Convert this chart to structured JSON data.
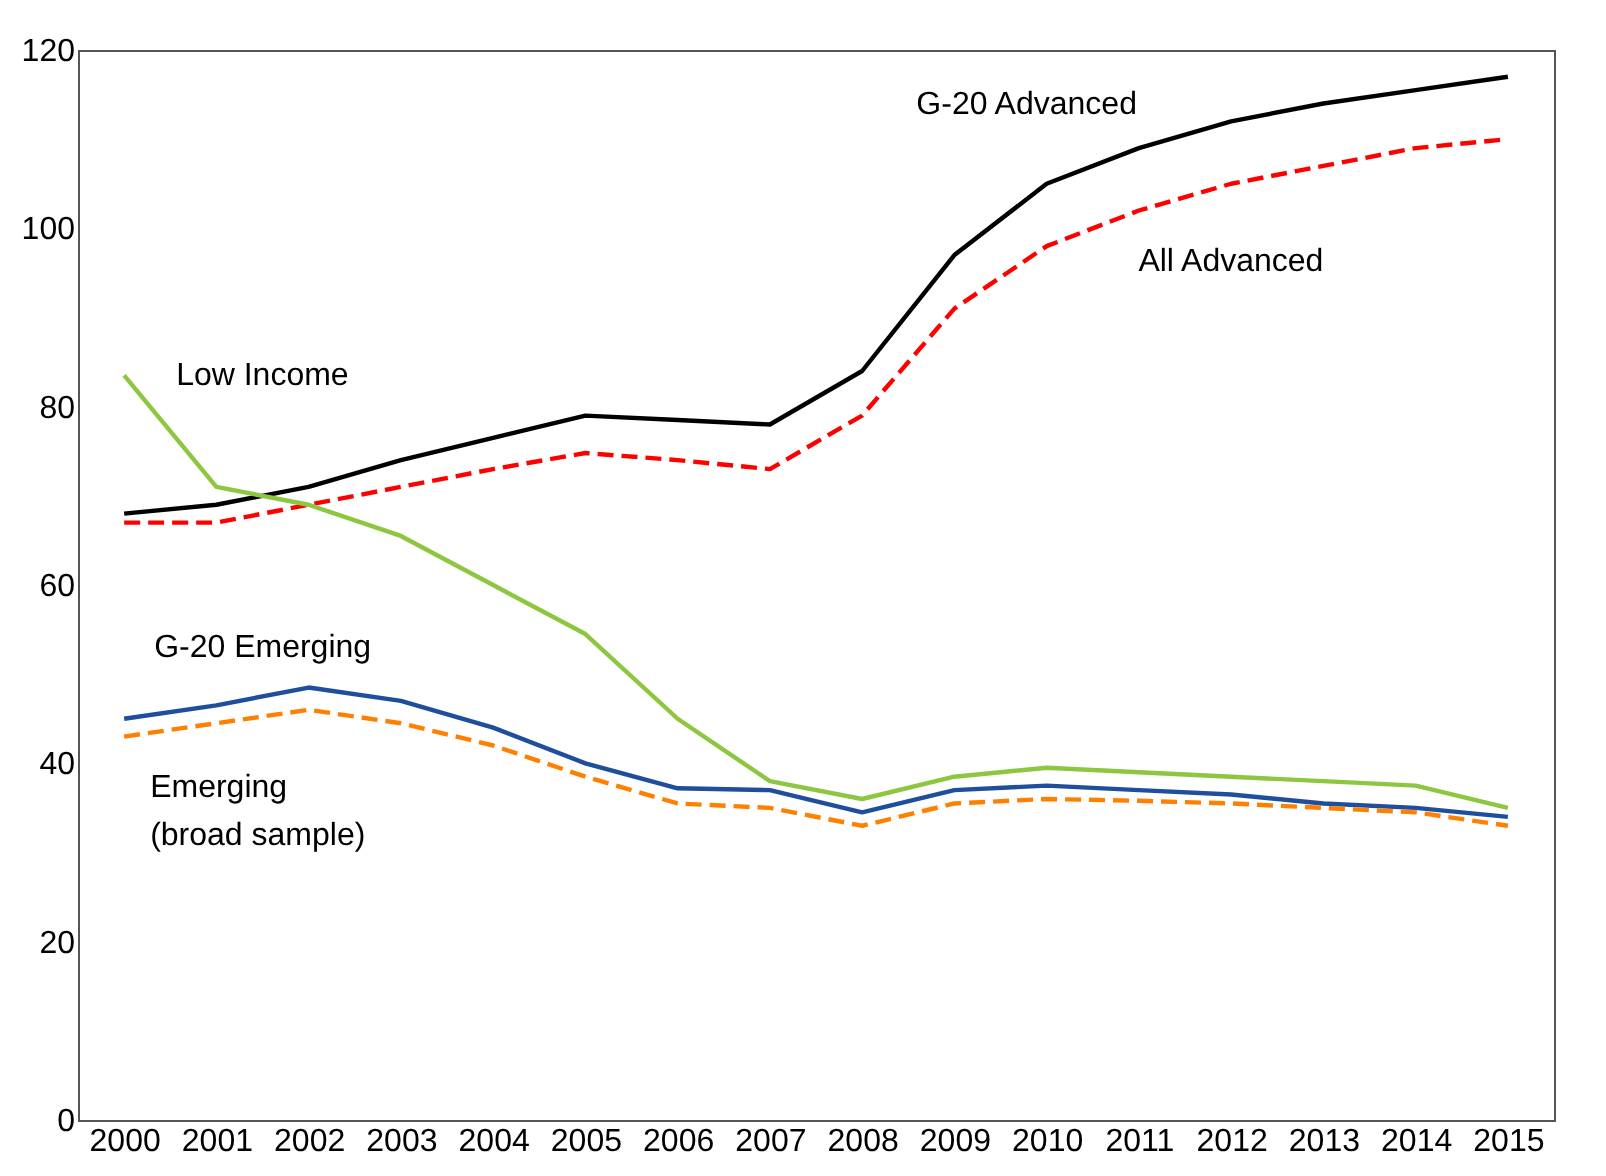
{
  "chart_data": {
    "type": "line",
    "categories": [
      "2000",
      "2001",
      "2002",
      "2003",
      "2004",
      "2005",
      "2006",
      "2007",
      "2008",
      "2009",
      "2010",
      "2011",
      "2012",
      "2013",
      "2014",
      "2015"
    ],
    "series": [
      {
        "name": "G-20 Advanced",
        "color": "#000000",
        "line_style": "solid",
        "values": [
          68,
          69,
          71,
          74,
          76.5,
          79,
          78.5,
          78,
          84,
          97,
          105,
          109,
          112,
          114,
          115.5,
          117
        ]
      },
      {
        "name": "All Advanced",
        "color": "#ff0000",
        "line_style": "dashed",
        "values": [
          67,
          67,
          69,
          71,
          73,
          74.8,
          74,
          73,
          79,
          91,
          98,
          102,
          105,
          107,
          109,
          110
        ]
      },
      {
        "name": "Low Income",
        "color": "#8dc63f",
        "line_style": "solid",
        "values": [
          83.5,
          71,
          69,
          65.5,
          60,
          54.5,
          45,
          38,
          36,
          38.5,
          39.5,
          39,
          38.5,
          38,
          37.5,
          35
        ]
      },
      {
        "name": "G-20 Emerging",
        "color": "#1f4e9c",
        "line_style": "solid",
        "values": [
          45,
          46.5,
          48.5,
          47,
          44,
          40,
          37.2,
          37,
          34.5,
          37,
          37.5,
          37,
          36.5,
          35.5,
          35,
          34
        ]
      },
      {
        "name": "Emerging\n(broad sample)",
        "color": "#ff7f00",
        "line_style": "dashed",
        "values": [
          43,
          44.5,
          46,
          44.5,
          42,
          38.5,
          35.5,
          35,
          33,
          35.5,
          36,
          35.8,
          35.5,
          35,
          34.5,
          33
        ]
      }
    ],
    "ylim": [
      0,
      120
    ],
    "yticks": [
      0,
      20,
      40,
      60,
      80,
      100,
      120
    ],
    "grid": false,
    "marker": "none"
  }
}
